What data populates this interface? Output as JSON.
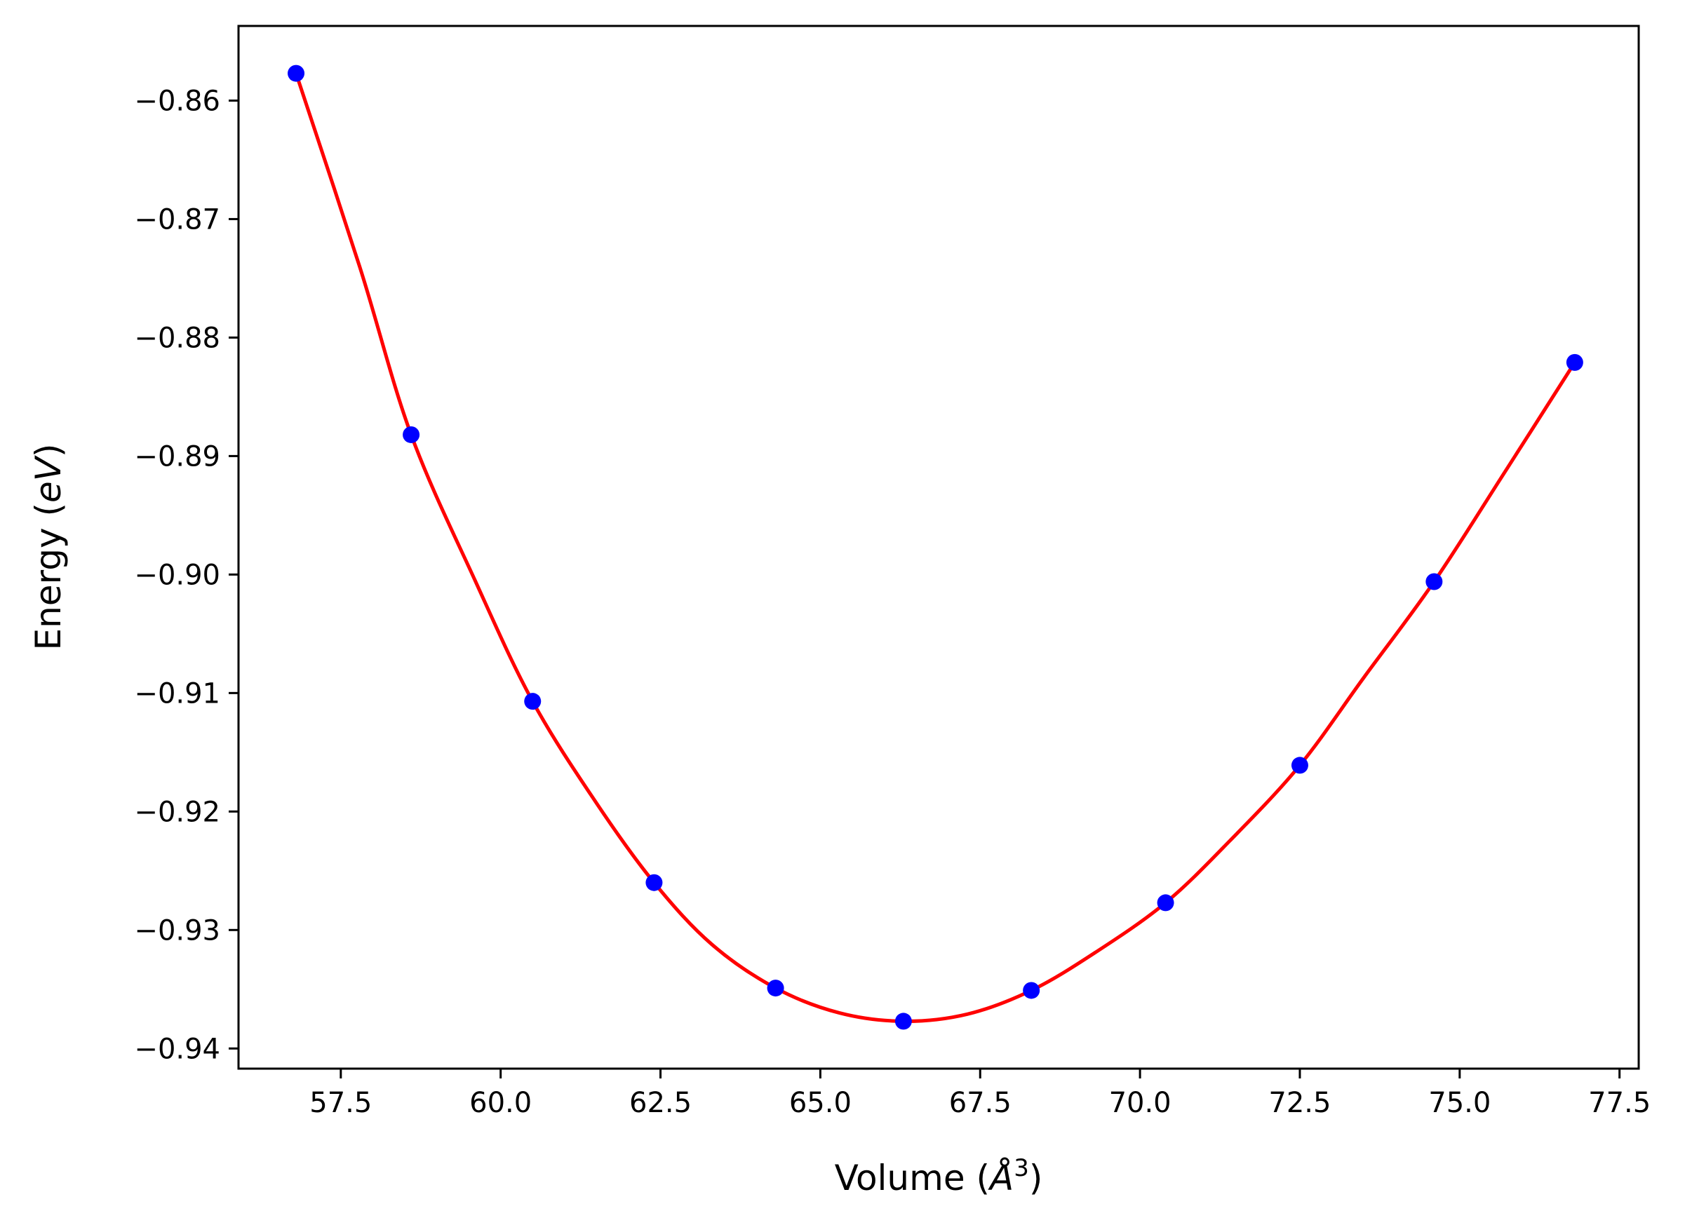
{
  "chart_data": {
    "type": "line",
    "title": "",
    "xlabel_parts": [
      "Volume (",
      "Å",
      "3",
      ")"
    ],
    "ylabel_parts": [
      "Energy (",
      "eV",
      ")"
    ],
    "xlim": [
      55.9,
      77.8
    ],
    "ylim": [
      -0.9417,
      -0.8537
    ],
    "xticks": [
      57.5,
      60.0,
      62.5,
      65.0,
      67.5,
      70.0,
      72.5,
      75.0,
      77.5
    ],
    "xtick_labels": [
      "57.5",
      "60.0",
      "62.5",
      "65.0",
      "67.5",
      "70.0",
      "72.5",
      "75.0",
      "77.5"
    ],
    "yticks": [
      -0.86,
      -0.87,
      -0.88,
      -0.89,
      -0.9,
      -0.91,
      -0.92,
      -0.93,
      -0.94
    ],
    "ytick_labels": [
      "−0.86",
      "−0.87",
      "−0.88",
      "−0.89",
      "−0.90",
      "−0.91",
      "−0.92",
      "−0.93",
      "−0.94"
    ],
    "series": [
      {
        "kind": "scatter",
        "color": "#0000ff",
        "x": [
          56.8,
          58.6,
          60.5,
          62.4,
          64.3,
          66.3,
          68.3,
          70.4,
          72.5,
          74.6,
          76.8
        ],
        "y": [
          -0.8577,
          -0.8882,
          -0.9107,
          -0.926,
          -0.9349,
          -0.9377,
          -0.9351,
          -0.9277,
          -0.9161,
          -0.9006,
          -0.8821
        ]
      },
      {
        "kind": "line",
        "color": "#ff0000",
        "x": [
          56.8,
          57.8,
          58.6,
          59.6,
          60.5,
          61.5,
          62.4,
          63.3,
          64.3,
          65.3,
          66.3,
          67.3,
          68.3,
          69.3,
          70.4,
          71.4,
          72.5,
          73.5,
          74.6,
          75.7,
          76.8
        ],
        "y": [
          -0.8577,
          -0.8741,
          -0.8882,
          -0.9005,
          -0.9107,
          -0.9193,
          -0.926,
          -0.9312,
          -0.9349,
          -0.937,
          -0.9377,
          -0.9371,
          -0.9351,
          -0.9319,
          -0.9277,
          -0.9225,
          -0.9161,
          -0.9087,
          -0.9006,
          -0.8914,
          -0.8821
        ]
      }
    ]
  }
}
